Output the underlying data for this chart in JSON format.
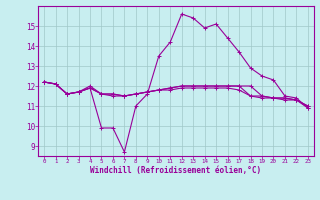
{
  "xlabel": "Windchill (Refroidissement éolien,°C)",
  "background_color": "#c8eef0",
  "grid_color": "#a0c8c8",
  "line_color": "#990099",
  "x": [
    0,
    1,
    2,
    3,
    4,
    5,
    6,
    7,
    8,
    9,
    10,
    11,
    12,
    13,
    14,
    15,
    16,
    17,
    18,
    19,
    20,
    21,
    22,
    23
  ],
  "series": [
    [
      12.2,
      12.1,
      11.6,
      11.7,
      11.9,
      9.9,
      9.9,
      8.7,
      11.0,
      11.6,
      13.5,
      14.2,
      15.6,
      15.4,
      14.9,
      15.1,
      14.4,
      13.7,
      12.9,
      12.5,
      12.3,
      11.5,
      11.4,
      10.9
    ],
    [
      12.2,
      12.1,
      11.6,
      11.7,
      12.0,
      11.6,
      11.6,
      11.5,
      11.6,
      11.7,
      11.8,
      11.9,
      12.0,
      12.0,
      12.0,
      12.0,
      12.0,
      12.0,
      12.0,
      11.5,
      11.4,
      11.4,
      11.3,
      11.0
    ],
    [
      12.2,
      12.1,
      11.6,
      11.7,
      11.9,
      11.6,
      11.6,
      11.5,
      11.6,
      11.7,
      11.8,
      11.9,
      12.0,
      12.0,
      12.0,
      12.0,
      12.0,
      12.0,
      11.5,
      11.5,
      11.4,
      11.4,
      11.3,
      11.0
    ],
    [
      12.2,
      12.1,
      11.6,
      11.7,
      11.9,
      11.6,
      11.5,
      11.5,
      11.6,
      11.7,
      11.8,
      11.8,
      11.9,
      11.9,
      11.9,
      11.9,
      11.9,
      11.8,
      11.5,
      11.4,
      11.4,
      11.3,
      11.3,
      10.9
    ]
  ],
  "ylim": [
    8.5,
    16.0
  ],
  "yticks": [
    9,
    10,
    11,
    12,
    13,
    14,
    15
  ],
  "xticks": [
    0,
    1,
    2,
    3,
    4,
    5,
    6,
    7,
    8,
    9,
    10,
    11,
    12,
    13,
    14,
    15,
    16,
    17,
    18,
    19,
    20,
    21,
    22,
    23
  ],
  "xlim": [
    -0.5,
    23.5
  ]
}
